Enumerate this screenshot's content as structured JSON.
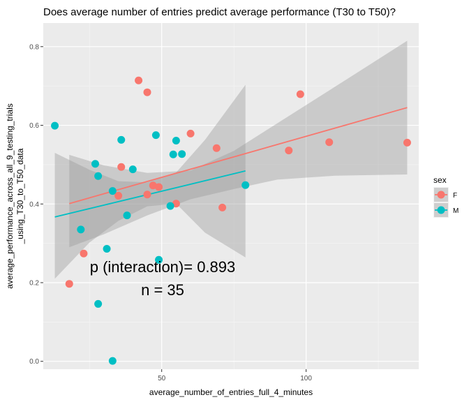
{
  "chart_data": {
    "type": "scatter",
    "title": "Does average number of entries predict average performance (T30 to T50)?",
    "xlabel": "average_number_of_entries_full_4_minutes",
    "ylabel_lines": [
      "average_performance_across_all_9_testing_trials",
      "_using_T30_to_T50_data"
    ],
    "xlim": [
      9,
      139
    ],
    "ylim": [
      -0.02,
      0.86
    ],
    "x_ticks": [
      50,
      100
    ],
    "y_ticks": [
      0.0,
      0.2,
      0.4,
      0.6,
      0.8
    ],
    "x_tick_labels": [
      "50",
      "100"
    ],
    "y_tick_labels": [
      "0.0",
      "0.2",
      "0.4",
      "0.6",
      "0.8"
    ],
    "grid": true,
    "legend": {
      "title": "sex",
      "position": "right",
      "entries": [
        "F",
        "M"
      ]
    },
    "colors": {
      "F": "#F8766D",
      "M": "#00BFC4",
      "band": "#999999",
      "panel": "#EBEBEB"
    },
    "series": [
      {
        "name": "F",
        "points": [
          [
            18,
            0.197
          ],
          [
            23,
            0.274
          ],
          [
            35,
            0.421
          ],
          [
            36,
            0.494
          ],
          [
            42,
            0.714
          ],
          [
            45,
            0.424
          ],
          [
            45,
            0.684
          ],
          [
            47,
            0.447
          ],
          [
            49,
            0.443
          ],
          [
            55,
            0.401
          ],
          [
            60,
            0.579
          ],
          [
            69,
            0.542
          ],
          [
            71,
            0.391
          ],
          [
            94,
            0.536
          ],
          [
            98,
            0.679
          ],
          [
            108,
            0.557
          ],
          [
            135,
            0.556
          ]
        ],
        "fit": {
          "x": [
            18,
            135
          ],
          "y": [
            0.401,
            0.645
          ]
        },
        "ci_upper": [
          [
            18,
            0.525
          ],
          [
            30,
            0.498
          ],
          [
            45,
            0.479
          ],
          [
            60,
            0.485
          ],
          [
            75,
            0.535
          ],
          [
            90,
            0.605
          ],
          [
            110,
            0.698
          ],
          [
            135,
            0.815
          ]
        ],
        "ci_lower": [
          [
            18,
            0.29
          ],
          [
            30,
            0.323
          ],
          [
            45,
            0.371
          ],
          [
            60,
            0.412
          ],
          [
            75,
            0.438
          ],
          [
            90,
            0.462
          ],
          [
            110,
            0.472
          ],
          [
            135,
            0.475
          ]
        ]
      },
      {
        "name": "M",
        "points": [
          [
            13,
            0.599
          ],
          [
            22,
            0.335
          ],
          [
            27,
            0.502
          ],
          [
            28,
            0.471
          ],
          [
            28,
            0.146
          ],
          [
            31,
            0.286
          ],
          [
            33,
            0.433
          ],
          [
            33,
            0.001
          ],
          [
            36,
            0.563
          ],
          [
            38,
            0.371
          ],
          [
            40,
            0.488
          ],
          [
            48,
            0.575
          ],
          [
            49,
            0.258
          ],
          [
            53,
            0.395
          ],
          [
            54,
            0.526
          ],
          [
            55,
            0.561
          ],
          [
            57,
            0.527
          ],
          [
            79,
            0.448
          ]
        ],
        "fit": {
          "x": [
            13,
            79
          ],
          "y": [
            0.367,
            0.484
          ]
        },
        "ci_upper": [
          [
            13,
            0.53
          ],
          [
            25,
            0.487
          ],
          [
            35,
            0.458
          ],
          [
            45,
            0.455
          ],
          [
            55,
            0.48
          ],
          [
            65,
            0.563
          ],
          [
            79,
            0.703
          ]
        ],
        "ci_lower": [
          [
            13,
            0.21
          ],
          [
            25,
            0.302
          ],
          [
            35,
            0.357
          ],
          [
            45,
            0.394
          ],
          [
            55,
            0.401
          ],
          [
            65,
            0.327
          ],
          [
            79,
            0.264
          ]
        ]
      }
    ],
    "annotations": [
      "p (interaction)= 0.893",
      "n = 35"
    ]
  }
}
